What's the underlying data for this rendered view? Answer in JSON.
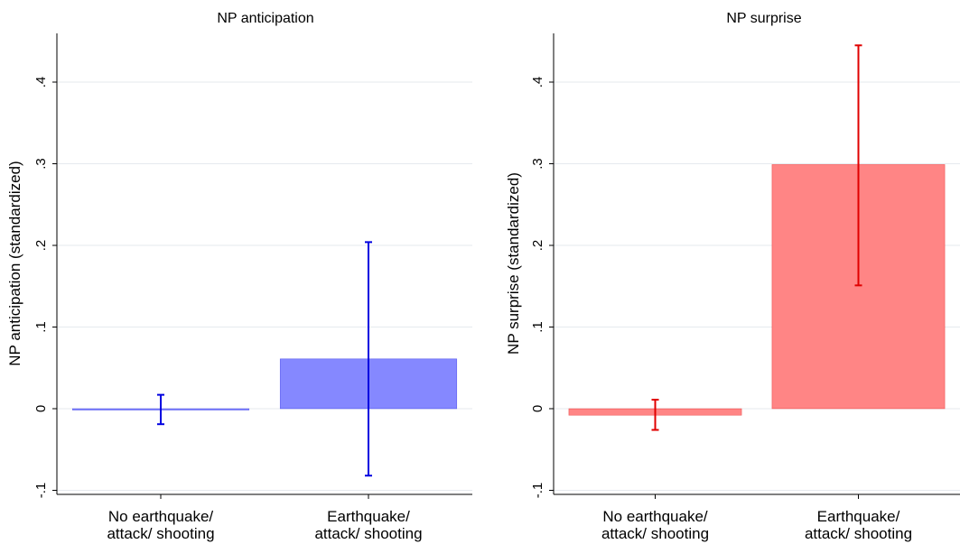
{
  "chart_data": [
    {
      "type": "bar",
      "title": "NP anticipation",
      "ylabel": "NP anticipation (standardized)",
      "xlabel": "",
      "ylim": [
        -0.1,
        0.45
      ],
      "yticks": [
        -0.1,
        0,
        0.1,
        0.2,
        0.3,
        0.4
      ],
      "ytick_labels": [
        "-.1",
        "0",
        ".1",
        ".2",
        ".3",
        ".4"
      ],
      "grid": true,
      "bar_color": "#8588ff",
      "error_color": "#0000e0",
      "categories": [
        "No earthquake/ attack/ shooting",
        "Earthquake/ attack/ shooting"
      ],
      "category_lines": [
        [
          "No earthquake/",
          "attack/ shooting"
        ],
        [
          "Earthquake/",
          "attack/ shooting"
        ]
      ],
      "values": [
        -0.001,
        0.061
      ],
      "ci_low": [
        -0.019,
        -0.082
      ],
      "ci_high": [
        0.017,
        0.204
      ]
    },
    {
      "type": "bar",
      "title": "NP surprise",
      "ylabel": "NP surprise (standardized)",
      "xlabel": "",
      "ylim": [
        -0.1,
        0.45
      ],
      "yticks": [
        -0.1,
        0,
        0.1,
        0.2,
        0.3,
        0.4
      ],
      "ytick_labels": [
        "-.1",
        "0",
        ".1",
        ".2",
        ".3",
        ".4"
      ],
      "grid": true,
      "bar_color": "#ff8585",
      "error_color": "#e00000",
      "categories": [
        "No earthquake/ attack/ shooting",
        "Earthquake/ attack/ shooting"
      ],
      "category_lines": [
        [
          "No earthquake/",
          "attack/ shooting"
        ],
        [
          "Earthquake/",
          "attack/ shooting"
        ]
      ],
      "values": [
        -0.008,
        0.299
      ],
      "ci_low": [
        -0.026,
        0.151
      ],
      "ci_high": [
        0.011,
        0.445
      ]
    }
  ]
}
